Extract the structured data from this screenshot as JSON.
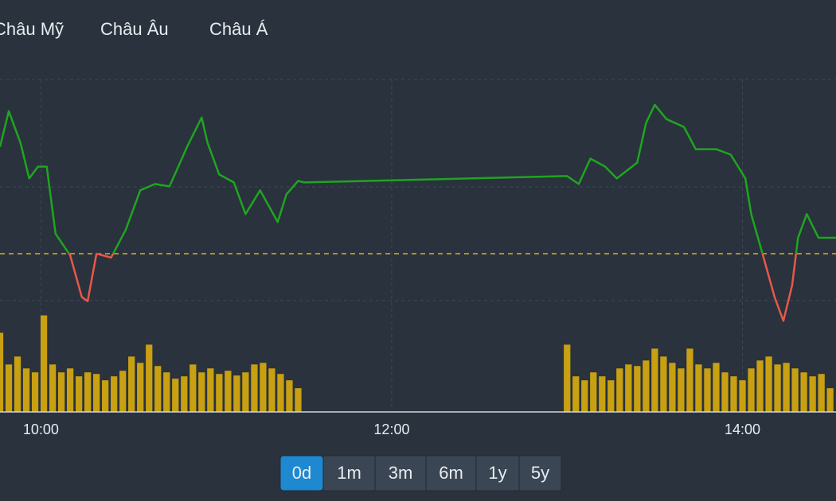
{
  "tabs": [
    "Châu Mỹ",
    "Châu Âu",
    "Châu Á"
  ],
  "range_buttons": [
    "0d",
    "1m",
    "3m",
    "6m",
    "1y",
    "5y"
  ],
  "active_range": 0,
  "chart_data": [
    {
      "type": "line",
      "x": [
        "09:46",
        "09:49",
        "09:53",
        "09:56",
        "09:59",
        "10:02",
        "10:05",
        "10:10",
        "10:14",
        "10:16",
        "10:19",
        "10:24",
        "10:29",
        "10:34",
        "10:39",
        "10:44",
        "10:50",
        "10:55",
        "10:57",
        "11:01",
        "11:06",
        "11:10",
        "11:15",
        "11:21",
        "11:24",
        "11:28",
        "11:30",
        "13:00",
        "13:04",
        "13:08",
        "13:13",
        "13:17",
        "13:24",
        "13:27",
        "13:30",
        "13:34",
        "13:40",
        "13:44",
        "13:51",
        "13:56",
        "14:01",
        "14:03",
        "14:07",
        "14:11",
        "14:14",
        "14:17",
        "14:19",
        "14:22",
        "14:26",
        "14:32"
      ],
      "series": [
        {
          "values": [
            335,
            380,
            340,
            295,
            310,
            310,
            225,
            198,
            145,
            140,
            200,
            195,
            230,
            280,
            288,
            285,
            335,
            372,
            340,
            300,
            290,
            250,
            280,
            240,
            275,
            292,
            290,
            298,
            288,
            320,
            310,
            295,
            315,
            365,
            388,
            370,
            360,
            332,
            332,
            325,
            295,
            250,
            198,
            145,
            115,
            160,
            220,
            250,
            220,
            220
          ]
        }
      ],
      "xlim": [
        "09:46",
        "14:32"
      ],
      "xticks": [
        "10:00",
        "12:00",
        "14:00"
      ],
      "ylim": [
        0,
        420
      ],
      "baseline": 200,
      "color_up": "#1fa51f",
      "color_down": "#e8574a",
      "baseline_color": "#e0b020",
      "grid": true
    },
    {
      "type": "bar",
      "x": [
        "09:46",
        "09:49",
        "09:52",
        "09:55",
        "09:58",
        "10:01",
        "10:04",
        "10:07",
        "10:10",
        "10:13",
        "10:16",
        "10:19",
        "10:22",
        "10:25",
        "10:28",
        "10:31",
        "10:34",
        "10:37",
        "10:40",
        "10:43",
        "10:46",
        "10:49",
        "10:52",
        "10:55",
        "10:58",
        "11:01",
        "11:04",
        "11:07",
        "11:10",
        "11:13",
        "11:16",
        "11:19",
        "11:22",
        "11:25",
        "11:28",
        "13:00",
        "13:03",
        "13:06",
        "13:09",
        "13:12",
        "13:15",
        "13:18",
        "13:21",
        "13:24",
        "13:27",
        "13:30",
        "13:33",
        "13:36",
        "13:39",
        "13:42",
        "13:45",
        "13:48",
        "13:51",
        "13:54",
        "13:57",
        "14:00",
        "14:03",
        "14:06",
        "14:09",
        "14:12",
        "14:15",
        "14:18",
        "14:21",
        "14:24",
        "14:27",
        "14:30"
      ],
      "values": [
        100,
        60,
        70,
        55,
        50,
        122,
        60,
        50,
        55,
        45,
        50,
        48,
        40,
        45,
        52,
        70,
        62,
        85,
        58,
        50,
        42,
        45,
        60,
        50,
        55,
        48,
        52,
        46,
        50,
        60,
        62,
        55,
        48,
        40,
        30,
        85,
        45,
        40,
        50,
        45,
        40,
        55,
        60,
        58,
        65,
        80,
        70,
        62,
        55,
        80,
        60,
        55,
        62,
        50,
        45,
        40,
        55,
        65,
        70,
        60,
        62,
        55,
        50,
        45,
        48,
        30
      ],
      "ylim": [
        0,
        420
      ],
      "color": "#c8a012"
    }
  ]
}
